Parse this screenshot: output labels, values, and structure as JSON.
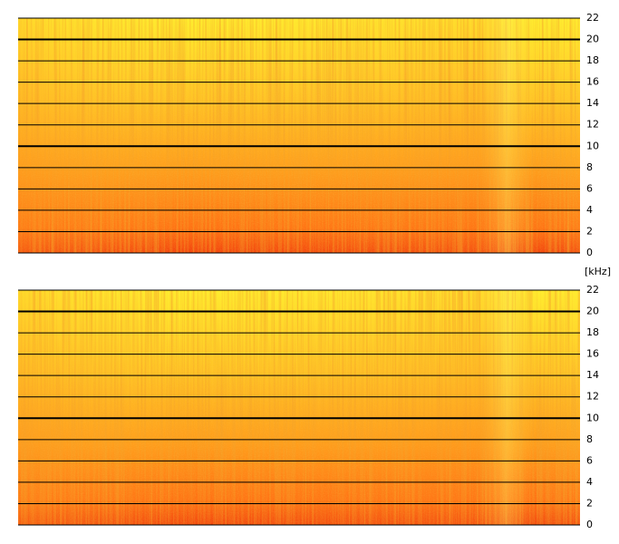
{
  "chart_data": [
    {
      "type": "spectrogram",
      "ylabel": "[kHz]",
      "ylim": [
        0,
        22
      ],
      "yticks": [
        0,
        2,
        4,
        6,
        8,
        10,
        12,
        14,
        16,
        18,
        20,
        22
      ],
      "bold_gridlines": [
        10,
        20
      ],
      "grid": true
    },
    {
      "type": "spectrogram",
      "ylim": [
        0,
        22
      ],
      "yticks": [
        0,
        2,
        4,
        6,
        8,
        10,
        12,
        14,
        16,
        18,
        20,
        22
      ],
      "bold_gridlines": [
        10,
        20
      ],
      "grid": true
    }
  ]
}
